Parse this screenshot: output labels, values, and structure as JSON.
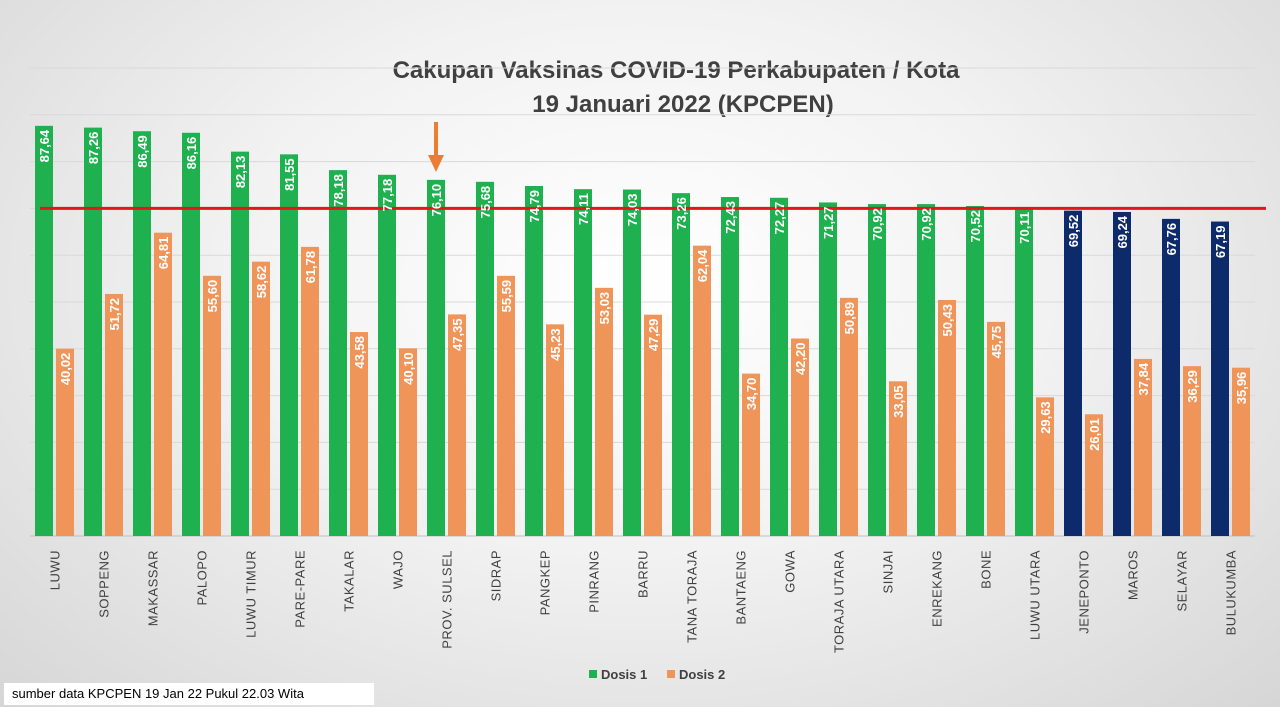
{
  "chart_data": {
    "type": "bar",
    "title": "Cakupan Vaksinas COVID-19 Perkabupaten / Kota",
    "subtitle": "19 Januari 2022 (KPCPEN)",
    "categories": [
      "LUWU",
      "SOPPENG",
      "MAKASSAR",
      "PALOPO",
      "LUWU TIMUR",
      "PARE-PARE",
      "TAKALAR",
      "WAJO",
      "PROV. SULSEL",
      "SIDRAP",
      "PANGKEP",
      "PINRANG",
      "BARRU",
      "TANA TORAJA",
      "BANTAENG",
      "GOWA",
      "TORAJA UTARA",
      "SINJAI",
      "ENREKANG",
      "BONE",
      "LUWU UTARA",
      "JENEPONTO",
      "MAROS",
      "SELAYAR",
      "BULUKUMBA"
    ],
    "series": [
      {
        "name": "Dosis 1",
        "values": [
          87.64,
          87.26,
          86.49,
          86.16,
          82.13,
          81.55,
          78.18,
          77.18,
          76.1,
          75.68,
          74.79,
          74.11,
          74.03,
          73.26,
          72.43,
          72.27,
          71.27,
          70.92,
          70.92,
          70.52,
          70.11,
          69.52,
          69.24,
          67.76,
          67.19
        ]
      },
      {
        "name": "Dosis 2",
        "values": [
          40.02,
          51.72,
          64.81,
          55.6,
          58.62,
          61.78,
          43.58,
          40.1,
          47.35,
          55.59,
          45.23,
          53.03,
          47.29,
          62.04,
          34.7,
          42.2,
          50.89,
          33.05,
          50.43,
          45.75,
          29.63,
          26.01,
          37.84,
          36.29,
          35.96
        ]
      }
    ],
    "value_labels_d1": [
      "87,64",
      "87,26",
      "86,49",
      "86,16",
      "82,13",
      "81,55",
      "78,18",
      "77,18",
      "76,10",
      "75,68",
      "74,79",
      "74,11",
      "74,03",
      "73,26",
      "72,43",
      "72,27",
      "71,27",
      "70,92",
      "70,92",
      "70,52",
      "70,11",
      "69,52",
      "69,24",
      "67,76",
      "67,19"
    ],
    "value_labels_d2": [
      "40,02",
      "51,72",
      "64,81",
      "55,60",
      "58,62",
      "61,78",
      "43,58",
      "40,10",
      "47,35",
      "55,59",
      "45,23",
      "53,03",
      "47,29",
      "62,04",
      "34,70",
      "42,20",
      "50,89",
      "33,05",
      "50,43",
      "45,75",
      "29,63",
      "26,01",
      "37,84",
      "36,29",
      "35,96"
    ],
    "target_line": 70,
    "ylim": [
      0,
      100
    ],
    "grid": true,
    "legend_position": "bottom",
    "highlight_category": "PROV. SULSEL",
    "colors": {
      "dosis1": "#1fb04f",
      "dosis1_below_target": "#0d2a6b",
      "dosis2": "#f0955a",
      "target_line": "#e8141b",
      "arrow": "#ed7d31",
      "grid": "#d9d9d9",
      "axis": "#bfbfbf"
    }
  },
  "source_note": "sumber data KPCPEN 19 Jan 22 Pukul 22.03 Wita"
}
